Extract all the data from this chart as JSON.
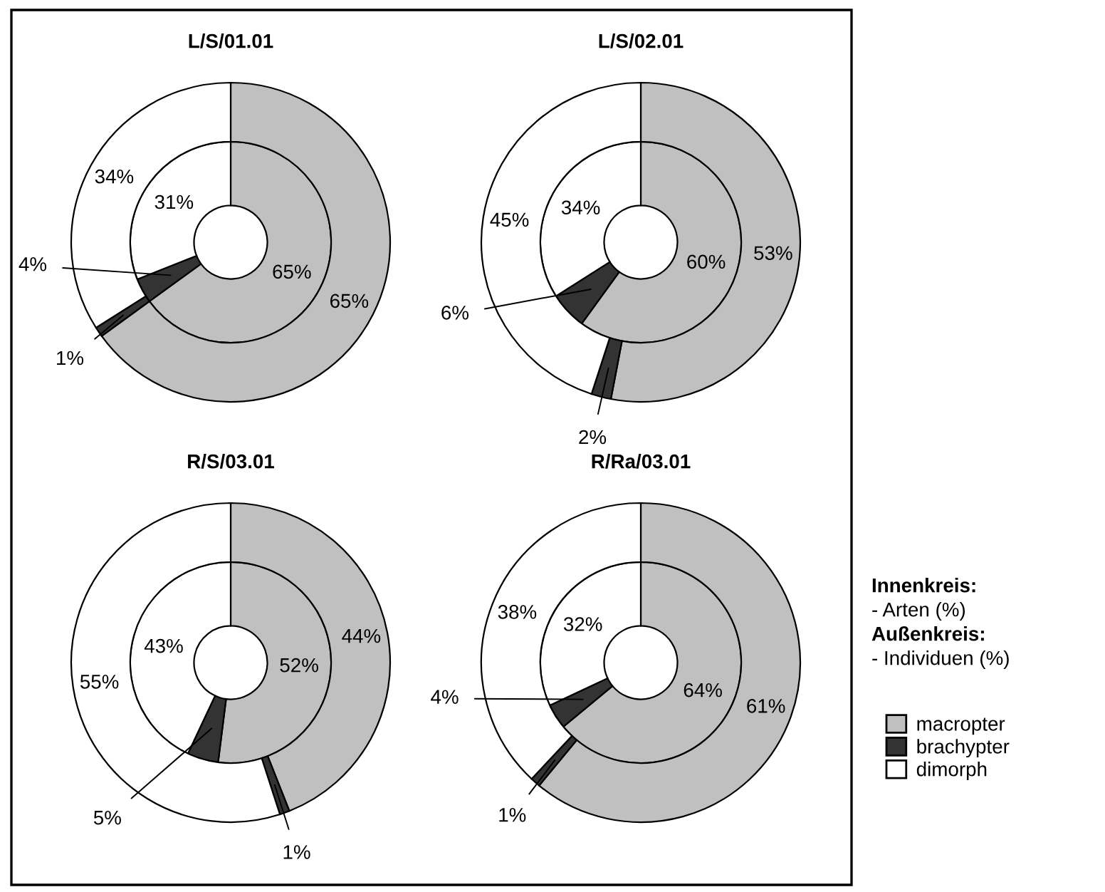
{
  "chart_data": [
    {
      "type": "donut",
      "title": "L/S/01.01",
      "categories": [
        "macropter",
        "brachypter",
        "dimorph"
      ],
      "legend": "right",
      "annotations": [
        "Innenkreis:",
        "- Arten (%)",
        "Außenkreis:",
        "- Individuen (%)"
      ],
      "series": [
        {
          "colors": [
            "#c0c0c0",
            "#333333",
            "#ffffff"
          ],
          "values": [
            65,
            4,
            31
          ],
          "value_labels": [
            "65%",
            "4%",
            "31%"
          ]
        },
        {
          "colors": [
            "#c0c0c0",
            "#333333",
            "#ffffff"
          ],
          "values": [
            65,
            1,
            34
          ],
          "value_labels": [
            "65%",
            "1%",
            "34%"
          ]
        }
      ]
    },
    {
      "type": "donut",
      "title": "L/S/02.01",
      "categories": [
        null,
        null,
        null
      ],
      "series": [
        {
          "colors": [
            "#c0c0c0",
            "#333333",
            "#ffffff"
          ],
          "values": [
            60,
            6,
            34
          ],
          "value_labels": [
            "60%",
            "6%",
            "34%"
          ]
        },
        {
          "colors": [
            "#c0c0c0",
            "#333333",
            "#ffffff"
          ],
          "values": [
            53,
            2,
            45
          ],
          "value_labels": [
            "53%",
            "2%",
            "45%"
          ]
        }
      ]
    },
    {
      "type": "donut",
      "title": "R/S/03.01",
      "categories": [
        null,
        null,
        null
      ],
      "series": [
        {
          "colors": [
            "#c0c0c0",
            "#333333",
            "#ffffff"
          ],
          "values": [
            52,
            5,
            43
          ],
          "value_labels": [
            "52%",
            "5%",
            "43%"
          ]
        },
        {
          "colors": [
            "#c0c0c0",
            "#333333",
            "#ffffff"
          ],
          "values": [
            44,
            1,
            55
          ],
          "value_labels": [
            "44%",
            "1%",
            "55%"
          ]
        }
      ]
    },
    {
      "type": "donut",
      "title": "R/Ra/03.01",
      "categories": [
        null,
        null,
        null
      ],
      "series": [
        {
          "colors": [
            "#c0c0c0",
            "#333333",
            "#ffffff"
          ],
          "values": [
            64,
            4,
            32
          ],
          "value_labels": [
            "64%",
            "4%",
            "32%"
          ]
        },
        {
          "colors": [
            "#c0c0c0",
            "#333333",
            "#ffffff"
          ],
          "values": [
            61,
            1,
            38
          ],
          "value_labels": [
            "61%",
            "1%",
            "38%"
          ]
        }
      ]
    }
  ]
}
